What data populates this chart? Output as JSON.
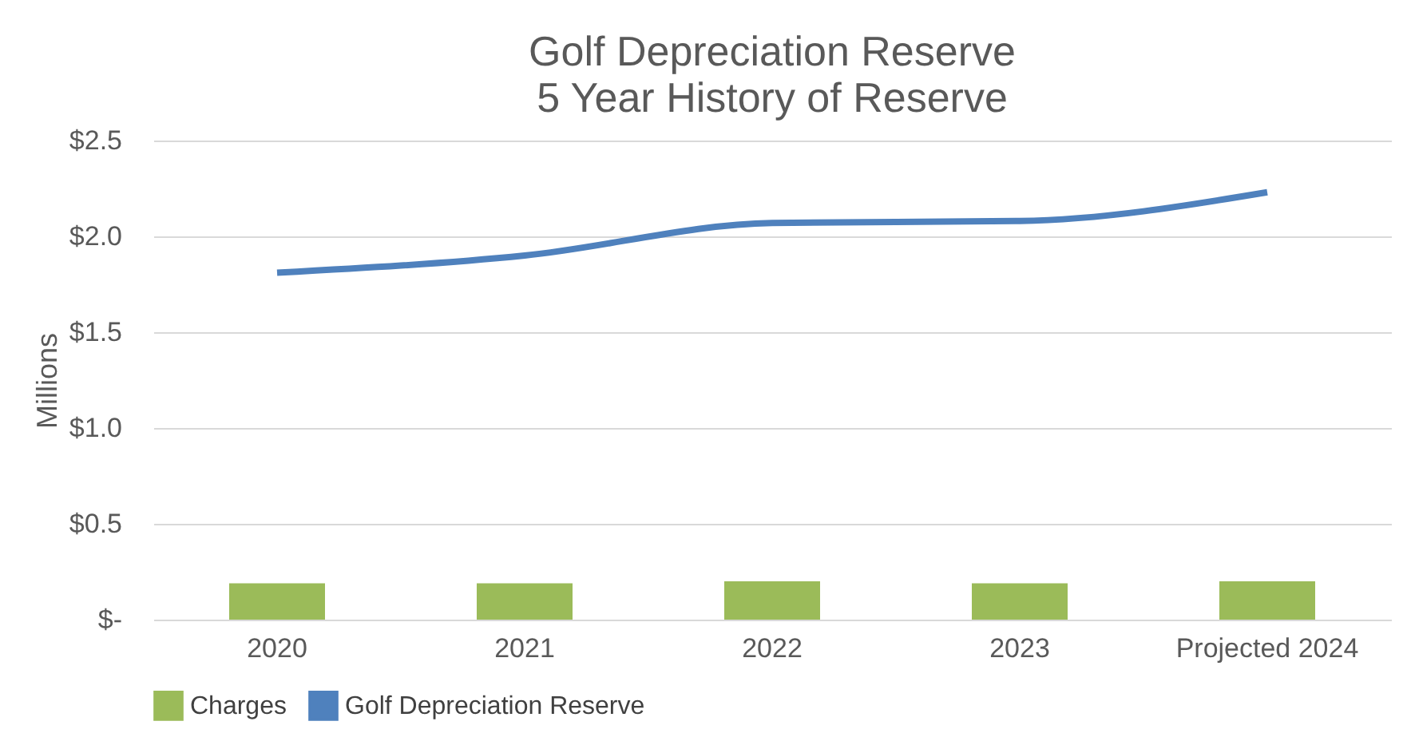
{
  "chart_data": {
    "type": "bar",
    "title": "Golf Depreciation Reserve",
    "subtitle": "5 Year History of Reserve",
    "ylabel": "Millions",
    "categories": [
      "2020",
      "2021",
      "2022",
      "2023",
      "Projected 2024"
    ],
    "series": [
      {
        "name": "Charges",
        "color": "#9bbb59",
        "values": [
          0.19,
          0.19,
          0.2,
          0.19,
          0.2
        ]
      },
      {
        "name": "Golf Depreciation Reserve",
        "type": "line",
        "color": "#4f81bd",
        "values": [
          1.81,
          1.9,
          2.07,
          2.08,
          2.23
        ]
      }
    ],
    "ylim": [
      0,
      2.5
    ],
    "yticks": [
      {
        "value": 0,
        "label": "$-"
      },
      {
        "value": 0.5,
        "label": "$0.5"
      },
      {
        "value": 1.0,
        "label": "$1.0"
      },
      {
        "value": 1.5,
        "label": "$1.5"
      },
      {
        "value": 2.0,
        "label": "$2.0"
      },
      {
        "value": 2.5,
        "label": "$2.5"
      }
    ],
    "grid": "y",
    "legend": "bottom"
  }
}
